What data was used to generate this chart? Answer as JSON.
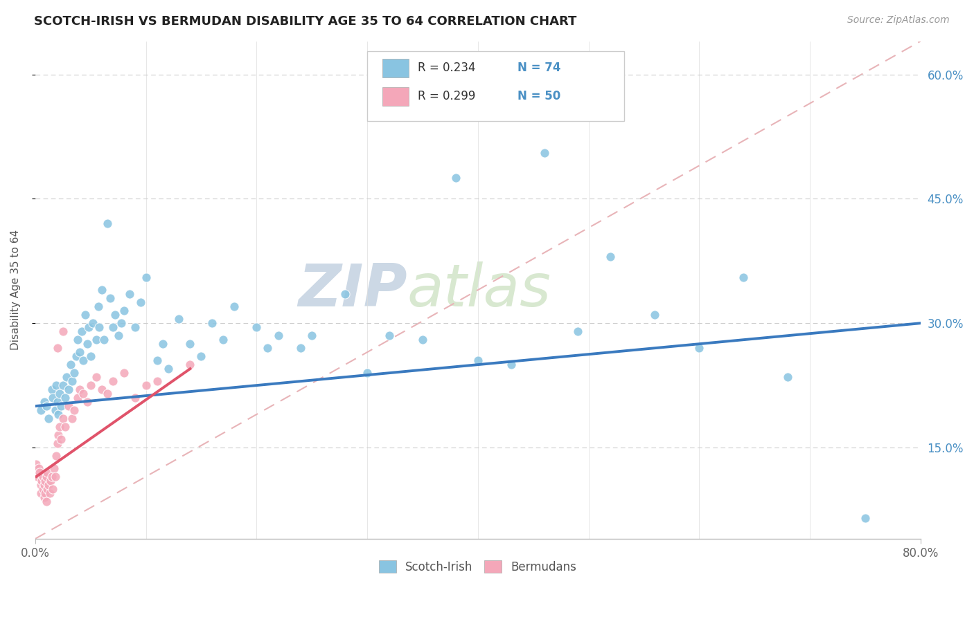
{
  "title": "SCOTCH-IRISH VS BERMUDAN DISABILITY AGE 35 TO 64 CORRELATION CHART",
  "source_text": "Source: ZipAtlas.com",
  "ylabel": "Disability Age 35 to 64",
  "xmin": 0.0,
  "xmax": 0.8,
  "ymin": 0.04,
  "ymax": 0.64,
  "xtick_labels": [
    "0.0%",
    "80.0%"
  ],
  "ytick_labels": [
    "15.0%",
    "30.0%",
    "45.0%",
    "60.0%"
  ],
  "ytick_vals": [
    0.15,
    0.3,
    0.45,
    0.6
  ],
  "color_blue": "#89c4e1",
  "color_pink": "#f4a7b9",
  "trendline_color_blue": "#3a7abf",
  "trendline_color_pink": "#e0536a",
  "ref_line_color": "#e8b4b8",
  "watermark_color": "#dde8f0",
  "background_color": "#ffffff",
  "scotch_irish_x": [
    0.005,
    0.008,
    0.01,
    0.012,
    0.015,
    0.016,
    0.018,
    0.019,
    0.02,
    0.021,
    0.022,
    0.023,
    0.025,
    0.027,
    0.028,
    0.03,
    0.032,
    0.033,
    0.035,
    0.037,
    0.038,
    0.04,
    0.042,
    0.043,
    0.045,
    0.047,
    0.048,
    0.05,
    0.052,
    0.055,
    0.057,
    0.058,
    0.06,
    0.062,
    0.065,
    0.068,
    0.07,
    0.072,
    0.075,
    0.078,
    0.08,
    0.085,
    0.09,
    0.095,
    0.1,
    0.11,
    0.115,
    0.12,
    0.13,
    0.14,
    0.15,
    0.16,
    0.17,
    0.18,
    0.2,
    0.21,
    0.22,
    0.24,
    0.25,
    0.28,
    0.3,
    0.32,
    0.35,
    0.38,
    0.4,
    0.43,
    0.46,
    0.49,
    0.52,
    0.56,
    0.6,
    0.64,
    0.68,
    0.75
  ],
  "scotch_irish_y": [
    0.195,
    0.205,
    0.2,
    0.185,
    0.22,
    0.21,
    0.195,
    0.225,
    0.205,
    0.19,
    0.215,
    0.2,
    0.225,
    0.21,
    0.235,
    0.22,
    0.25,
    0.23,
    0.24,
    0.26,
    0.28,
    0.265,
    0.29,
    0.255,
    0.31,
    0.275,
    0.295,
    0.26,
    0.3,
    0.28,
    0.32,
    0.295,
    0.34,
    0.28,
    0.42,
    0.33,
    0.295,
    0.31,
    0.285,
    0.3,
    0.315,
    0.335,
    0.295,
    0.325,
    0.355,
    0.255,
    0.275,
    0.245,
    0.305,
    0.275,
    0.26,
    0.3,
    0.28,
    0.32,
    0.295,
    0.27,
    0.285,
    0.27,
    0.285,
    0.335,
    0.24,
    0.285,
    0.28,
    0.475,
    0.255,
    0.25,
    0.505,
    0.29,
    0.38,
    0.31,
    0.27,
    0.355,
    0.235,
    0.065
  ],
  "bermudan_x": [
    0.001,
    0.002,
    0.003,
    0.004,
    0.005,
    0.005,
    0.006,
    0.007,
    0.007,
    0.008,
    0.008,
    0.009,
    0.009,
    0.01,
    0.01,
    0.011,
    0.011,
    0.012,
    0.013,
    0.014,
    0.015,
    0.016,
    0.017,
    0.018,
    0.019,
    0.02,
    0.021,
    0.022,
    0.023,
    0.025,
    0.027,
    0.03,
    0.033,
    0.035,
    0.038,
    0.04,
    0.043,
    0.047,
    0.05,
    0.055,
    0.06,
    0.065,
    0.07,
    0.08,
    0.09,
    0.1,
    0.11,
    0.14,
    0.02,
    0.025
  ],
  "bermudan_y": [
    0.13,
    0.115,
    0.125,
    0.12,
    0.095,
    0.105,
    0.11,
    0.1,
    0.115,
    0.09,
    0.105,
    0.095,
    0.11,
    0.085,
    0.115,
    0.1,
    0.12,
    0.105,
    0.095,
    0.11,
    0.115,
    0.1,
    0.125,
    0.115,
    0.14,
    0.155,
    0.165,
    0.175,
    0.16,
    0.185,
    0.175,
    0.2,
    0.185,
    0.195,
    0.21,
    0.22,
    0.215,
    0.205,
    0.225,
    0.235,
    0.22,
    0.215,
    0.23,
    0.24,
    0.21,
    0.225,
    0.23,
    0.25,
    0.27,
    0.29
  ],
  "bm_trendline_x": [
    0.001,
    0.14
  ],
  "si_trendline_x_start": 0.0,
  "si_trendline_x_end": 0.8,
  "si_trendline_y_start": 0.2,
  "si_trendline_y_end": 0.3,
  "bm_trendline_y_start": 0.115,
  "bm_trendline_y_end": 0.245,
  "ref_line_x_start": 0.0,
  "ref_line_x_end": 0.8,
  "ref_line_y_start": 0.04,
  "ref_line_y_end": 0.64
}
